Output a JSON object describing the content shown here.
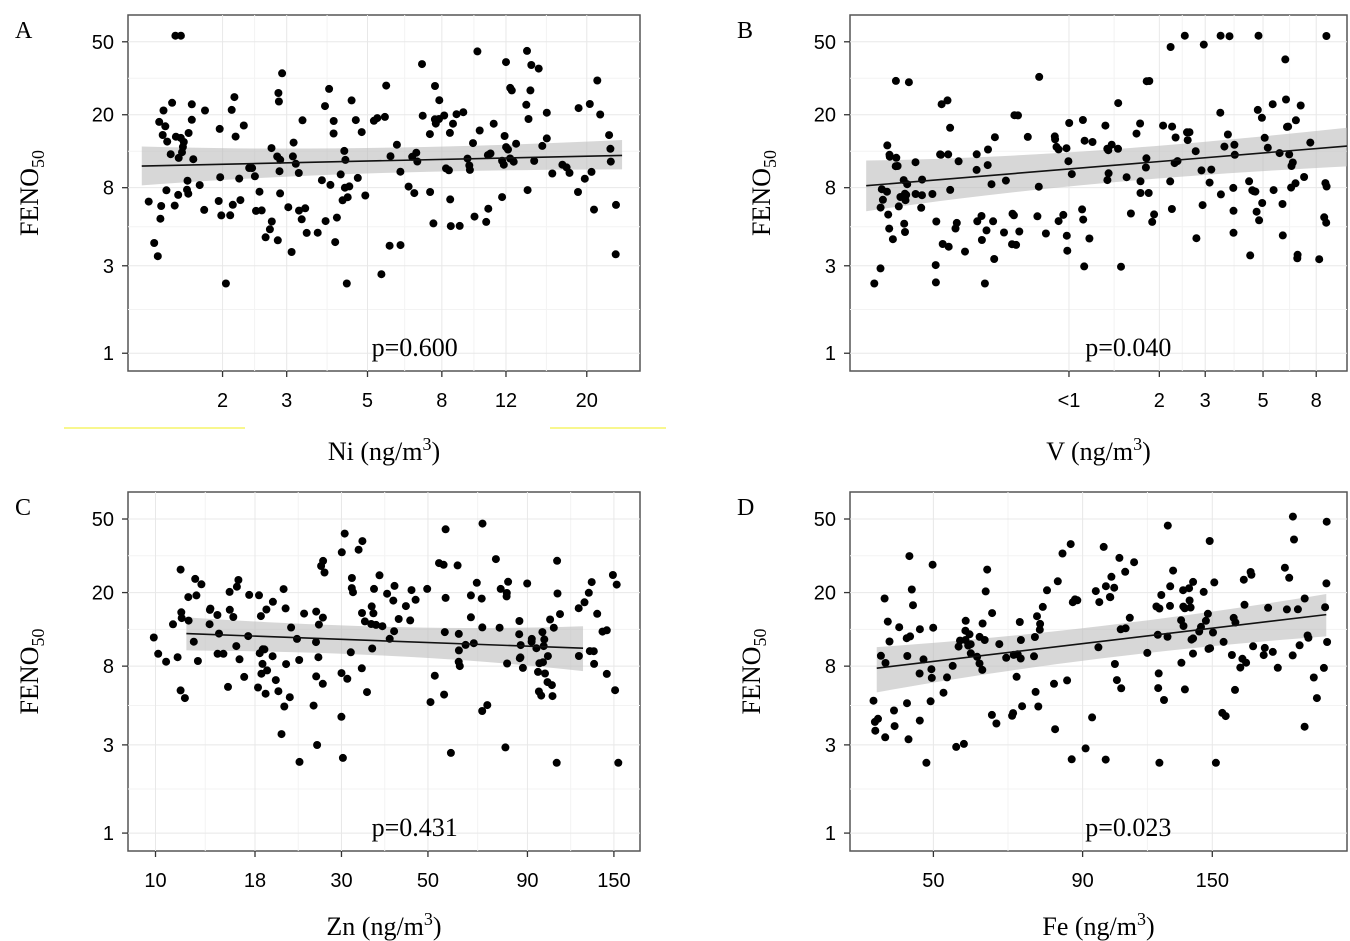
{
  "chart_data": [
    {
      "panel": "A",
      "type": "scatter",
      "xlabel": "Ni (ng/m",
      "xlabel_sup": "3",
      "xlabel_end": ")",
      "ylabel": "FENO",
      "ylabel_sub": "50",
      "xscale": "log",
      "yscale": "log",
      "xlim": [
        1.1,
        28
      ],
      "ylim": [
        0.8,
        70
      ],
      "xticks": [
        {
          "v": 2,
          "label": "2"
        },
        {
          "v": 3,
          "label": "3"
        },
        {
          "v": 5,
          "label": "5"
        },
        {
          "v": 8,
          "label": "8"
        },
        {
          "v": 12,
          "label": "12"
        },
        {
          "v": 20,
          "label": "20"
        }
      ],
      "yticks": [
        {
          "v": 1,
          "label": "1"
        },
        {
          "v": 3,
          "label": "3"
        },
        {
          "v": 8,
          "label": "8"
        },
        {
          "v": 20,
          "label": "20"
        },
        {
          "v": 50,
          "label": "50"
        }
      ],
      "annotation": "p=0.600",
      "fit": {
        "x0": 1.2,
        "x1": 25,
        "y0": 10.5,
        "y1": 12.0,
        "band_lo": [
          8.5,
          10.3
        ],
        "band_hi": [
          13.0,
          14.2
        ]
      },
      "seed": 11
    },
    {
      "panel": "B",
      "type": "scatter",
      "xlabel": "V (ng/m",
      "xlabel_sup": "3",
      "xlabel_end": ")",
      "ylabel": "FENO",
      "ylabel_sub": "50",
      "xscale": "log",
      "yscale": "log",
      "xlim": [
        0.13,
        10.5
      ],
      "ylim": [
        0.8,
        70
      ],
      "xticks": [
        {
          "v": 0.9,
          "label": "<1"
        },
        {
          "v": 2,
          "label": "2"
        },
        {
          "v": 3,
          "label": "3"
        },
        {
          "v": 5,
          "label": "5"
        },
        {
          "v": 8,
          "label": "8"
        }
      ],
      "yticks": [
        {
          "v": 1,
          "label": "1"
        },
        {
          "v": 3,
          "label": "3"
        },
        {
          "v": 8,
          "label": "8"
        },
        {
          "v": 20,
          "label": "20"
        },
        {
          "v": 50,
          "label": "50"
        }
      ],
      "annotation": "p=0.040",
      "fit": {
        "x0": 0.15,
        "x1": 10.5,
        "y0": 8.2,
        "y1": 13.5,
        "band_lo": [
          6.2,
          10.8
        ],
        "band_hi": [
          10.8,
          16.5
        ]
      },
      "seed": 23
    },
    {
      "panel": "C",
      "type": "scatter",
      "xlabel": "Zn (ng/m",
      "xlabel_sup": "3",
      "xlabel_end": ")",
      "ylabel": "FENO",
      "ylabel_sub": "50",
      "xscale": "log",
      "yscale": "log",
      "xlim": [
        8.5,
        175
      ],
      "ylim": [
        0.8,
        70
      ],
      "xticks": [
        {
          "v": 10,
          "label": "10"
        },
        {
          "v": 18,
          "label": "18"
        },
        {
          "v": 30,
          "label": "30"
        },
        {
          "v": 50,
          "label": "50"
        },
        {
          "v": 90,
          "label": "90"
        },
        {
          "v": 150,
          "label": "150"
        }
      ],
      "yticks": [
        {
          "v": 1,
          "label": "1"
        },
        {
          "v": 3,
          "label": "3"
        },
        {
          "v": 8,
          "label": "8"
        },
        {
          "v": 20,
          "label": "20"
        },
        {
          "v": 50,
          "label": "50"
        }
      ],
      "annotation": "p=0.431",
      "fit": {
        "x0": 12,
        "x1": 125,
        "y0": 12.0,
        "y1": 10.0,
        "band_lo": [
          10.0,
          7.8
        ],
        "band_hi": [
          14.3,
          12.7
        ]
      },
      "seed": 37
    },
    {
      "panel": "D",
      "type": "scatter",
      "xlabel": "Fe (ng/m",
      "xlabel_sup": "3",
      "xlabel_end": ")",
      "ylabel": "FENO",
      "ylabel_sub": "50",
      "xscale": "log",
      "yscale": "log",
      "xlim": [
        36,
        255
      ],
      "ylim": [
        0.8,
        70
      ],
      "xticks": [
        {
          "v": 50,
          "label": "50"
        },
        {
          "v": 90,
          "label": "90"
        },
        {
          "v": 150,
          "label": "150"
        }
      ],
      "yticks": [
        {
          "v": 1,
          "label": "1"
        },
        {
          "v": 3,
          "label": "3"
        },
        {
          "v": 8,
          "label": "8"
        },
        {
          "v": 20,
          "label": "20"
        },
        {
          "v": 50,
          "label": "50"
        }
      ],
      "annotation": "p=0.023",
      "fit": {
        "x0": 40,
        "x1": 235,
        "y0": 7.8,
        "y1": 15.2,
        "band_lo": [
          6.0,
          12.0
        ],
        "band_hi": [
          9.8,
          19.0
        ]
      },
      "seed": 53
    }
  ]
}
